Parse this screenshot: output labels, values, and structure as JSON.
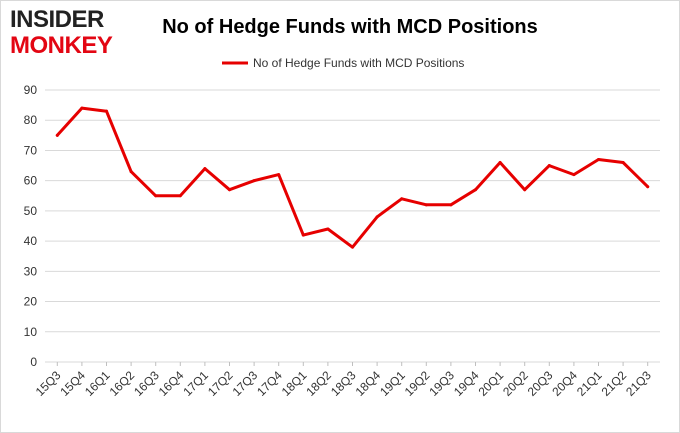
{
  "logo": {
    "line1": "INSIDER",
    "line2": "MONKEY"
  },
  "chart_data": {
    "type": "line",
    "title": "No of Hedge Funds with MCD Positions",
    "xlabel": "",
    "ylabel": "",
    "ylim": [
      0,
      90
    ],
    "yticks": [
      0,
      10,
      20,
      30,
      40,
      50,
      60,
      70,
      80,
      90
    ],
    "grid": true,
    "legend_position": "top-center",
    "categories": [
      "15Q3",
      "15Q4",
      "16Q1",
      "16Q2",
      "16Q3",
      "16Q4",
      "17Q1",
      "17Q2",
      "17Q3",
      "17Q4",
      "18Q1",
      "18Q2",
      "18Q3",
      "18Q4",
      "19Q1",
      "19Q2",
      "19Q3",
      "19Q4",
      "20Q1",
      "20Q2",
      "20Q3",
      "20Q4",
      "21Q1",
      "21Q2",
      "21Q3"
    ],
    "series": [
      {
        "name": "No of Hedge Funds with MCD Positions",
        "color": "#e60000",
        "values": [
          75,
          84,
          83,
          63,
          55,
          55,
          64,
          57,
          60,
          62,
          42,
          44,
          38,
          48,
          54,
          52,
          52,
          57,
          66,
          57,
          65,
          62,
          67,
          66,
          58
        ]
      }
    ]
  }
}
